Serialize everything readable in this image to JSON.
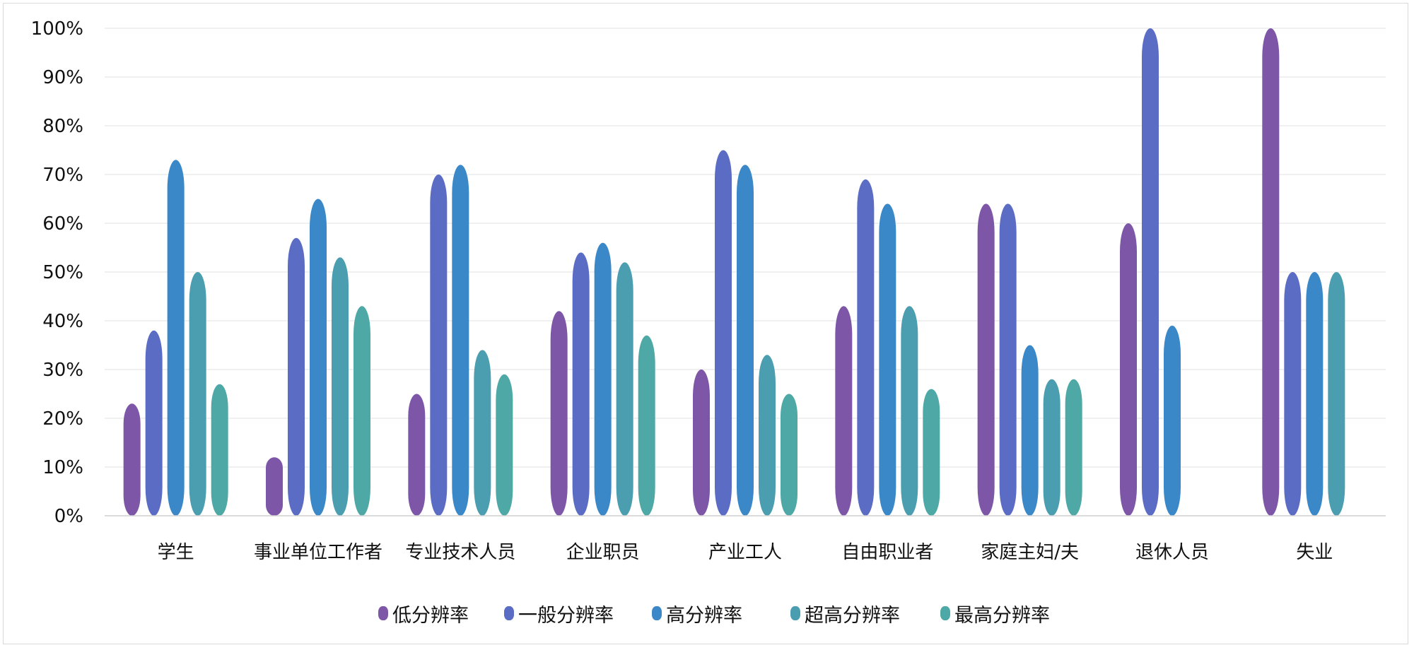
{
  "chart_data": {
    "type": "bar",
    "ylim": [
      0,
      100
    ],
    "y_ticks": [
      0,
      10,
      20,
      30,
      40,
      50,
      60,
      70,
      80,
      90,
      100
    ],
    "y_tick_labels": [
      "0%",
      "10%",
      "20%",
      "30%",
      "40%",
      "50%",
      "60%",
      "70%",
      "80%",
      "90%",
      "100%"
    ],
    "grid": true,
    "legend_position": "bottom",
    "categories": [
      "学生",
      "事业单位工作者",
      "专业技术人员",
      "企业职员",
      "产业工人",
      "自由职业者",
      "家庭主妇/夫",
      "退休人员",
      "失业"
    ],
    "series": [
      {
        "name": "低分辨率",
        "color": "#7e56a8",
        "values": [
          23,
          12,
          25,
          42,
          30,
          43,
          64,
          60,
          100
        ]
      },
      {
        "name": "一般分辨率",
        "color": "#5b6cc4",
        "values": [
          38,
          57,
          70,
          54,
          75,
          69,
          64,
          100,
          50
        ]
      },
      {
        "name": "高分辨率",
        "color": "#3a88c8",
        "values": [
          73,
          65,
          72,
          56,
          72,
          64,
          35,
          39,
          50
        ]
      },
      {
        "name": "超高分辨率",
        "color": "#4b9db0",
        "values": [
          50,
          53,
          34,
          52,
          33,
          43,
          28,
          0,
          50
        ]
      },
      {
        "name": "最高分辨率",
        "color": "#4ea8a6",
        "values": [
          27,
          43,
          29,
          37,
          25,
          26,
          28,
          0,
          0
        ]
      }
    ]
  }
}
